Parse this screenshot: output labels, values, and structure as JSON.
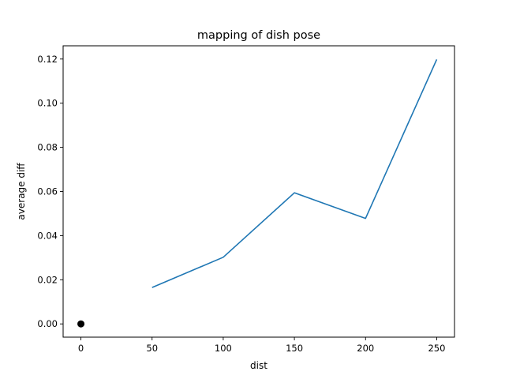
{
  "chart_data": {
    "type": "line",
    "title": "mapping of dish pose",
    "xlabel": "dist",
    "ylabel": "average diff",
    "xlim": [
      -12.5,
      262.5
    ],
    "ylim": [
      -0.006,
      0.126
    ],
    "xticks": [
      0,
      50,
      100,
      150,
      200,
      250
    ],
    "xtick_labels": [
      "0",
      "50",
      "100",
      "150",
      "200",
      "250"
    ],
    "yticks": [
      0.0,
      0.02,
      0.04,
      0.06,
      0.08,
      0.1,
      0.12
    ],
    "ytick_labels": [
      "0.00",
      "0.02",
      "0.04",
      "0.06",
      "0.08",
      "0.10",
      "0.12"
    ],
    "grid": false,
    "series": [
      {
        "type": "line",
        "color": "#1f77b4",
        "x": [
          50,
          100,
          150,
          200,
          250
        ],
        "y": [
          0.0165,
          0.0302,
          0.0594,
          0.0478,
          0.1198
        ]
      },
      {
        "type": "scatter",
        "color": "#000000",
        "x": [
          0
        ],
        "y": [
          0.0
        ]
      }
    ]
  }
}
